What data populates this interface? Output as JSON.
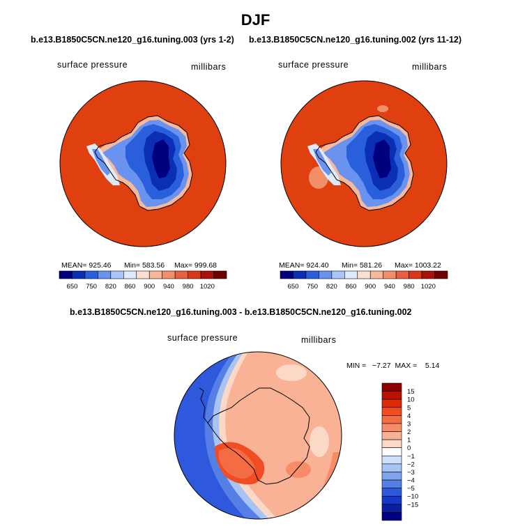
{
  "page_title": "DJF",
  "chart_data": [
    {
      "type": "heatmap",
      "title": "b.e13.B1850C5CN.ne120_g16.tuning.003 (yrs 1-2)",
      "variable_label": "surface pressure",
      "units_label": "millibars",
      "stats": {
        "mean": "925.46",
        "min": "583.56",
        "max": "999.68"
      },
      "stats_text": {
        "mean": "MEAN= 925.46",
        "min": "Min= 583.56",
        "max": "Max= 999.68"
      },
      "colorbar_levels": [
        "650",
        "750",
        "820",
        "860",
        "900",
        "940",
        "980",
        "1020"
      ],
      "colorbar_colors": [
        "#00007f",
        "#0a2fb4",
        "#2a5fdc",
        "#6a93ef",
        "#aac6f8",
        "#deebfc",
        "#fbe0d1",
        "#f7b99a",
        "#f18f69",
        "#e9603f",
        "#d93718",
        "#a9110a",
        "#6e0000"
      ],
      "projection": "south polar stereographic"
    },
    {
      "type": "heatmap",
      "title": "b.e13.B1850C5CN.ne120_g16.tuning.002 (yrs 11-12)",
      "variable_label": "surface pressure",
      "units_label": "millibars",
      "stats": {
        "mean": "924.40",
        "min": "581.26",
        "max": "1003.22"
      },
      "stats_text": {
        "mean": "MEAN= 924.40",
        "min": "Min= 581.26",
        "max": "Max= 1003.22"
      },
      "colorbar_levels": [
        "650",
        "750",
        "820",
        "860",
        "900",
        "940",
        "980",
        "1020"
      ],
      "colorbar_colors": [
        "#00007f",
        "#0a2fb4",
        "#2a5fdc",
        "#6a93ef",
        "#aac6f8",
        "#deebfc",
        "#fbe0d1",
        "#f7b99a",
        "#f18f69",
        "#e9603f",
        "#d93718",
        "#a9110a",
        "#6e0000"
      ],
      "projection": "south polar stereographic"
    },
    {
      "type": "heatmap",
      "title": "b.e13.B1850C5CN.ne120_g16.tuning.003 - b.e13.B1850C5CN.ne120_g16.tuning.002",
      "variable_label": "surface pressure",
      "units_label": "millibars",
      "stats": {
        "min": "-7.27",
        "max": "5.14"
      },
      "stats_text": "MIN =   −7.27  MAX =    5.14",
      "colorbar_levels": [
        "15",
        "10",
        "5",
        "4",
        "3",
        "2",
        "1",
        "0",
        "−1",
        "−2",
        "−3",
        "−4",
        "−5",
        "−10",
        "−15"
      ],
      "colorbar_colors": [
        "#8c0000",
        "#b81200",
        "#dd2c05",
        "#f04d22",
        "#f46c44",
        "#f78d68",
        "#f9b296",
        "#fcd8c6",
        "#ffffff",
        "#cfe0fa",
        "#a8c4f5",
        "#7fa4ee",
        "#567fe6",
        "#2f59dc",
        "#1538c8",
        "#0a1fa0",
        "#000080"
      ],
      "projection": "south polar stereographic"
    }
  ]
}
